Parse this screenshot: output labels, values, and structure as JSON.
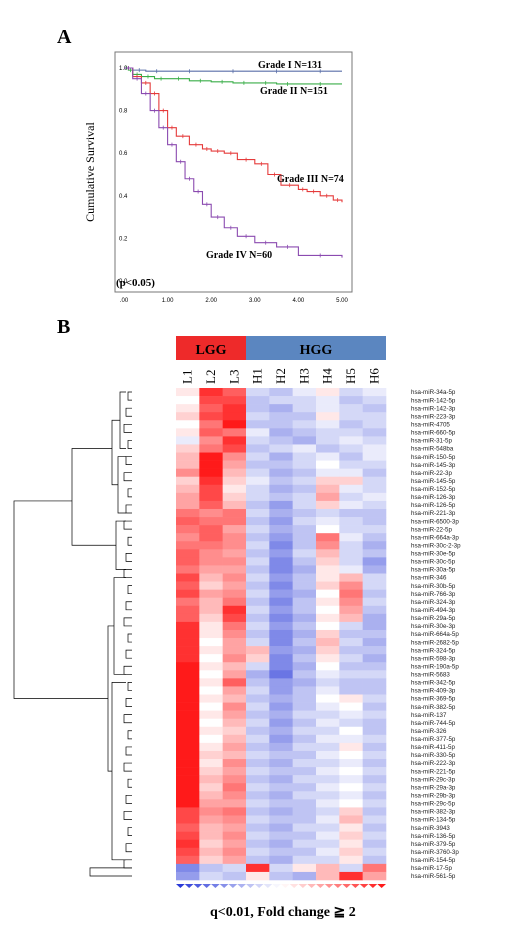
{
  "panel_a_label": "A",
  "panel_b_label": "B",
  "caption": "q<0.01, Fold change ≧ 2",
  "chart_data": [
    {
      "type": "line",
      "ylabel": "Cumulative Survival",
      "xlim": [
        0,
        5
      ],
      "ylim": [
        0,
        1
      ],
      "x_ticks": [
        ".00",
        "1.00",
        "2.00",
        "3.00",
        "4.00",
        "5.00"
      ],
      "y_ticks": [
        "0.0",
        "0.2",
        "0.4",
        "0.6",
        "0.8",
        "1.0"
      ],
      "annotation": "(p<0.05)",
      "series": [
        {
          "name": "Grade I N=131",
          "color": "#5a6fa8",
          "x": [
            0,
            0.2,
            0.5,
            1,
            2,
            3,
            4,
            5
          ],
          "y": [
            1.0,
            0.99,
            0.985,
            0.985,
            0.985,
            0.985,
            0.985,
            0.985
          ]
        },
        {
          "name": "Grade II N=151",
          "color": "#3aae48",
          "x": [
            0,
            0.1,
            0.2,
            0.4,
            0.7,
            1.0,
            1.5,
            2.0,
            2.5,
            3.0,
            3.5,
            4.0,
            5.0
          ],
          "y": [
            1.0,
            0.99,
            0.97,
            0.96,
            0.95,
            0.95,
            0.94,
            0.935,
            0.93,
            0.93,
            0.925,
            0.925,
            0.925
          ]
        },
        {
          "name": "Grade III N=74",
          "color": "#e53b3b",
          "x": [
            0,
            0.2,
            0.4,
            0.6,
            0.8,
            1.0,
            1.2,
            1.5,
            1.8,
            2.0,
            2.3,
            2.6,
            3.0,
            3.3,
            3.6,
            4.0,
            4.2,
            4.5,
            4.8,
            5.0
          ],
          "y": [
            1.0,
            0.96,
            0.93,
            0.88,
            0.8,
            0.72,
            0.68,
            0.64,
            0.62,
            0.61,
            0.6,
            0.57,
            0.55,
            0.5,
            0.45,
            0.43,
            0.42,
            0.4,
            0.38,
            0.37
          ]
        },
        {
          "name": "Grade IV N=60",
          "color": "#8b4bb0",
          "x": [
            0,
            0.2,
            0.4,
            0.6,
            0.8,
            1.0,
            1.2,
            1.4,
            1.6,
            1.8,
            2.0,
            2.3,
            2.6,
            3.0,
            3.5,
            4.0,
            5.0
          ],
          "y": [
            1.0,
            0.95,
            0.88,
            0.8,
            0.72,
            0.64,
            0.56,
            0.48,
            0.42,
            0.36,
            0.3,
            0.25,
            0.21,
            0.18,
            0.16,
            0.12,
            0.11
          ]
        }
      ]
    },
    {
      "type": "heatmap",
      "column_groups": [
        {
          "name": "LGG",
          "color": "#ee2a2a",
          "columns": [
            "L1",
            "L2",
            "L3"
          ]
        },
        {
          "name": "HGG",
          "color": "#5b86c0",
          "columns": [
            "H1",
            "H2",
            "H3",
            "H4",
            "H5",
            "H6"
          ]
        }
      ],
      "columns": [
        "L1",
        "L2",
        "L3",
        "H1",
        "H2",
        "H3",
        "H4",
        "H5",
        "H6"
      ],
      "rows": [
        "hsa-miR-34a-5p",
        "hsa-miR-142-5p",
        "hsa-miR-142-3p",
        "hsa-miR-223-3p",
        "hsa-miR-4705",
        "hsa-miR-660-5p",
        "hsa-miR-31-5p",
        "hsa-miR-548ba",
        "hsa-miR-150-5p",
        "hsa-miR-145-3p",
        "hsa-miR-22-3p",
        "hsa-miR-145-5p",
        "hsa-miR-152-5p",
        "hsa-miR-126-3p",
        "hsa-miR-126-5p",
        "hsa-miR-221-3p",
        "hsa-miR-6500-3p",
        "hsa-miR-22-5p",
        "hsa-miR-664a-3p",
        "hsa-miR-30c-2-3p",
        "hsa-miR-30e-5p",
        "hsa-miR-30c-5p",
        "hsa-miR-30a-5p",
        "hsa-miR-346",
        "hsa-miR-30b-5p",
        "hsa-miR-766-3p",
        "hsa-miR-324-3p",
        "hsa-miR-494-3p",
        "hsa-miR-29a-5p",
        "hsa-miR-30e-3p",
        "hsa-miR-664a-5p",
        "hsa-miR-2682-5p",
        "hsa-miR-324-5p",
        "hsa-miR-598-3p",
        "hsa-miR-190a-5p",
        "hsa-miR-5683",
        "hsa-miR-342-5p",
        "hsa-miR-409-3p",
        "hsa-miR-369-5p",
        "hsa-miR-382-5p",
        "hsa-miR-137",
        "hsa-miR-744-5p",
        "hsa-miR-326",
        "hsa-miR-377-5p",
        "hsa-miR-411-5p",
        "hsa-miR-330-5p",
        "hsa-miR-222-3p",
        "hsa-miR-221-5p",
        "hsa-miR-29c-3p",
        "hsa-miR-29a-3p",
        "hsa-miR-29b-3p",
        "hsa-miR-29c-5p",
        "hsa-miR-382-3p",
        "hsa-miR-134-5p",
        "hsa-miR-3943",
        "hsa-miR-136-5p",
        "hsa-miR-379-5p",
        "hsa-miR-3760-3p",
        "hsa-miR-154-5p",
        "hsa-miR-17-5p",
        "hsa-miR-561-5p"
      ],
      "values": [
        [
          0.1,
          0.9,
          0.7,
          -0.2,
          -0.3,
          -0.1,
          0.1,
          -0.2,
          -0.1
        ],
        [
          0.0,
          0.8,
          0.8,
          -0.3,
          -0.2,
          -0.2,
          -0.1,
          -0.3,
          -0.2
        ],
        [
          0.1,
          0.7,
          0.9,
          -0.3,
          -0.4,
          -0.2,
          -0.1,
          -0.2,
          -0.3
        ],
        [
          0.2,
          0.8,
          0.9,
          -0.2,
          -0.3,
          -0.3,
          0.1,
          -0.2,
          -0.2
        ],
        [
          0.0,
          0.6,
          1.0,
          -0.3,
          -0.3,
          -0.2,
          -0.1,
          -0.3,
          -0.2
        ],
        [
          0.1,
          0.7,
          0.6,
          -0.1,
          -0.4,
          -0.3,
          -0.2,
          -0.2,
          -0.3
        ],
        [
          -0.1,
          0.5,
          0.9,
          -0.2,
          -0.3,
          -0.4,
          -0.2,
          -0.1,
          -0.2
        ],
        [
          0.2,
          0.6,
          0.8,
          -0.3,
          -0.2,
          -0.1,
          -0.3,
          -0.2,
          -0.1
        ],
        [
          0.3,
          1.0,
          0.5,
          -0.2,
          -0.4,
          -0.2,
          -0.1,
          -0.3,
          -0.1
        ],
        [
          0.3,
          1.0,
          0.4,
          -0.3,
          -0.3,
          -0.2,
          0.0,
          -0.2,
          -0.2
        ],
        [
          0.5,
          1.0,
          0.3,
          -0.2,
          -0.4,
          -0.3,
          -0.1,
          -0.1,
          -0.3
        ],
        [
          0.2,
          0.9,
          0.2,
          -0.1,
          -0.3,
          -0.2,
          0.2,
          0.2,
          -0.2
        ],
        [
          0.3,
          0.8,
          0.1,
          -0.2,
          -0.4,
          -0.3,
          0.3,
          -0.1,
          -0.2
        ],
        [
          0.4,
          0.8,
          0.2,
          -0.2,
          -0.3,
          -0.2,
          0.4,
          -0.2,
          -0.1
        ],
        [
          0.4,
          0.7,
          0.3,
          -0.3,
          -0.5,
          -0.2,
          0.2,
          -0.1,
          -0.2
        ],
        [
          0.6,
          0.5,
          0.6,
          -0.2,
          -0.4,
          -0.3,
          -0.2,
          -0.3,
          -0.3
        ],
        [
          0.7,
          0.6,
          0.6,
          -0.3,
          -0.5,
          -0.2,
          -0.1,
          -0.2,
          -0.3
        ],
        [
          0.6,
          0.7,
          0.4,
          -0.2,
          -0.4,
          -0.3,
          0.0,
          -0.2,
          -0.2
        ],
        [
          0.5,
          0.7,
          0.5,
          -0.3,
          -0.5,
          -0.3,
          0.6,
          -0.1,
          -0.3
        ],
        [
          0.6,
          0.6,
          0.5,
          -0.2,
          -0.6,
          -0.3,
          0.5,
          -0.2,
          -0.4
        ],
        [
          0.7,
          0.5,
          0.4,
          -0.3,
          -0.5,
          -0.2,
          0.3,
          -0.2,
          -0.3
        ],
        [
          0.7,
          0.5,
          0.5,
          -0.2,
          -0.6,
          -0.3,
          0.2,
          -0.2,
          -0.5
        ],
        [
          0.6,
          0.4,
          0.4,
          -0.3,
          -0.6,
          -0.4,
          0.1,
          -0.1,
          -0.4
        ],
        [
          0.8,
          0.3,
          0.5,
          -0.2,
          -0.5,
          -0.3,
          0.1,
          0.3,
          -0.2
        ],
        [
          0.7,
          0.2,
          0.4,
          -0.3,
          -0.6,
          -0.3,
          0.2,
          0.5,
          -0.2
        ],
        [
          0.8,
          0.4,
          0.5,
          -0.2,
          -0.5,
          -0.4,
          0.0,
          0.6,
          -0.3
        ],
        [
          0.6,
          0.3,
          0.6,
          -0.3,
          -0.6,
          -0.3,
          0.1,
          0.5,
          -0.2
        ],
        [
          0.7,
          0.3,
          0.9,
          -0.2,
          -0.5,
          -0.3,
          0.0,
          0.4,
          -0.3
        ],
        [
          0.7,
          0.2,
          0.8,
          -0.3,
          -0.6,
          -0.4,
          0.1,
          0.3,
          -0.4
        ],
        [
          0.9,
          0.1,
          0.6,
          -0.2,
          -0.5,
          -0.3,
          0.0,
          -0.2,
          -0.4
        ],
        [
          0.9,
          0.1,
          0.5,
          -0.3,
          -0.6,
          -0.4,
          0.2,
          -0.3,
          -0.3
        ],
        [
          0.9,
          0.0,
          0.4,
          -0.2,
          -0.6,
          -0.3,
          0.3,
          -0.2,
          -0.4
        ],
        [
          0.9,
          0.1,
          0.4,
          0.3,
          -0.5,
          -0.4,
          0.2,
          -0.3,
          -0.3
        ],
        [
          0.9,
          0.0,
          0.5,
          0.2,
          -0.6,
          -0.3,
          0.1,
          -0.2,
          -0.4
        ],
        [
          1.0,
          0.1,
          0.3,
          -0.2,
          -0.6,
          -0.4,
          0.0,
          -0.3,
          -0.3
        ],
        [
          1.0,
          0.0,
          0.4,
          -0.4,
          -0.7,
          -0.3,
          -0.1,
          -0.2,
          -0.2
        ],
        [
          1.0,
          0.1,
          0.7,
          -0.3,
          -0.5,
          -0.4,
          -0.2,
          -0.3,
          -0.3
        ],
        [
          1.0,
          0.0,
          0.4,
          -0.2,
          -0.5,
          -0.3,
          -0.1,
          -0.3,
          -0.3
        ],
        [
          1.0,
          0.1,
          0.3,
          -0.3,
          -0.4,
          -0.3,
          0.0,
          0.1,
          -0.2
        ],
        [
          1.0,
          0.0,
          0.5,
          -0.2,
          -0.5,
          -0.3,
          -0.1,
          0.0,
          -0.3
        ],
        [
          1.0,
          0.1,
          0.4,
          -0.3,
          -0.4,
          -0.2,
          -0.2,
          -0.1,
          -0.2
        ],
        [
          1.0,
          0.0,
          0.3,
          -0.2,
          -0.5,
          -0.3,
          -0.1,
          -0.2,
          -0.3
        ],
        [
          1.0,
          0.1,
          0.2,
          -0.3,
          -0.4,
          -0.2,
          -0.2,
          0.0,
          -0.3
        ],
        [
          1.0,
          0.0,
          0.3,
          -0.2,
          -0.5,
          -0.3,
          -0.1,
          -0.1,
          -0.2
        ],
        [
          1.0,
          0.1,
          0.4,
          -0.3,
          -0.4,
          -0.2,
          -0.2,
          0.1,
          -0.3
        ],
        [
          1.0,
          0.2,
          0.3,
          -0.2,
          -0.3,
          -0.3,
          -0.1,
          0.0,
          -0.2
        ],
        [
          1.0,
          0.1,
          0.5,
          -0.3,
          -0.4,
          -0.2,
          -0.2,
          -0.1,
          -0.3
        ],
        [
          1.0,
          0.2,
          0.4,
          -0.2,
          -0.3,
          -0.3,
          -0.1,
          0.0,
          -0.2
        ],
        [
          1.0,
          0.3,
          0.5,
          -0.3,
          -0.4,
          -0.2,
          -0.2,
          -0.1,
          -0.3
        ],
        [
          1.0,
          0.2,
          0.6,
          -0.2,
          -0.3,
          -0.3,
          -0.1,
          0.0,
          -0.2
        ],
        [
          1.0,
          0.3,
          0.5,
          -0.3,
          -0.4,
          -0.2,
          -0.2,
          -0.1,
          -0.3
        ],
        [
          1.0,
          0.4,
          0.4,
          -0.2,
          -0.3,
          -0.3,
          -0.1,
          0.0,
          -0.2
        ],
        [
          0.8,
          0.5,
          0.6,
          -0.3,
          -0.4,
          -0.3,
          -0.2,
          0.2,
          -0.3
        ],
        [
          0.8,
          0.4,
          0.5,
          -0.2,
          -0.3,
          -0.3,
          -0.1,
          0.3,
          -0.2
        ],
        [
          0.7,
          0.3,
          0.4,
          -0.3,
          -0.4,
          -0.2,
          -0.2,
          0.1,
          -0.3
        ],
        [
          0.8,
          0.3,
          0.5,
          -0.2,
          -0.3,
          -0.3,
          -0.1,
          0.2,
          -0.2
        ],
        [
          0.9,
          0.2,
          0.4,
          -0.3,
          -0.4,
          -0.2,
          -0.2,
          0.1,
          -0.3
        ],
        [
          0.8,
          0.3,
          0.5,
          -0.2,
          -0.3,
          -0.3,
          -0.1,
          0.2,
          -0.2
        ],
        [
          0.7,
          0.2,
          0.4,
          -0.3,
          -0.4,
          -0.2,
          -0.2,
          0.1,
          -0.3
        ],
        [
          -0.6,
          -0.3,
          -0.2,
          0.9,
          -0.2,
          0.1,
          0.3,
          -0.2,
          0.6
        ],
        [
          -0.5,
          -0.2,
          -0.3,
          0.1,
          -0.3,
          -0.4,
          0.3,
          0.9,
          0.4
        ]
      ],
      "colors": {
        "low": "#2a3ad8",
        "mid": "#ffffff",
        "high": "#ff1a1a"
      }
    }
  ]
}
